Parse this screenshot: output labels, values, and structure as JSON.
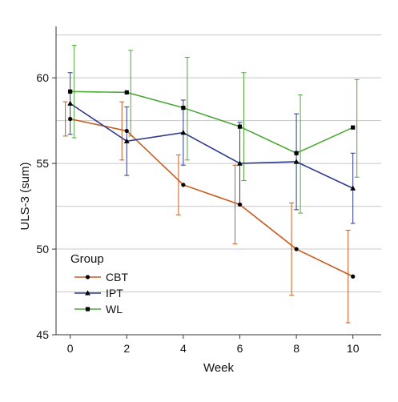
{
  "chart_data": {
    "type": "line",
    "xlabel": "Week",
    "ylabel": "ULS-3 (sum)",
    "x": [
      0,
      2,
      4,
      6,
      8,
      10
    ],
    "xticks": [
      "0",
      "2",
      "4",
      "6",
      "8",
      "10"
    ],
    "yticks": [
      "45",
      "50",
      "55",
      "60"
    ],
    "xlim": [
      -0.5,
      11
    ],
    "ylim": [
      45,
      63
    ],
    "grid": "horizontal",
    "error_bars": true,
    "legend": {
      "title": "Group",
      "placement": "bottom-left"
    },
    "series": [
      {
        "name": "CBT",
        "color": "#c95a1e",
        "marker": "circle",
        "values": [
          57.6,
          56.9,
          53.75,
          52.6,
          50.0,
          48.4
        ],
        "err_low": [
          56.6,
          55.2,
          52.0,
          50.3,
          47.3,
          45.7
        ],
        "err_high": [
          58.6,
          58.6,
          55.5,
          54.9,
          52.7,
          51.1
        ]
      },
      {
        "name": "IPT",
        "color": "#2f3c8c",
        "marker": "triangle",
        "values": [
          58.5,
          56.3,
          56.8,
          55.0,
          55.1,
          53.55
        ],
        "err_low": [
          56.7,
          54.3,
          54.9,
          52.6,
          52.3,
          51.5
        ],
        "err_high": [
          60.3,
          58.3,
          58.7,
          57.4,
          57.9,
          55.6
        ]
      },
      {
        "name": "WL",
        "color": "#4ea83a",
        "marker": "square",
        "values": [
          59.2,
          59.15,
          58.25,
          57.15,
          55.6,
          57.1
        ],
        "err_low": [
          56.5,
          56.6,
          55.2,
          54.0,
          52.1,
          54.2
        ],
        "err_high": [
          61.9,
          61.6,
          61.2,
          60.3,
          59.0,
          59.9
        ]
      }
    ]
  }
}
